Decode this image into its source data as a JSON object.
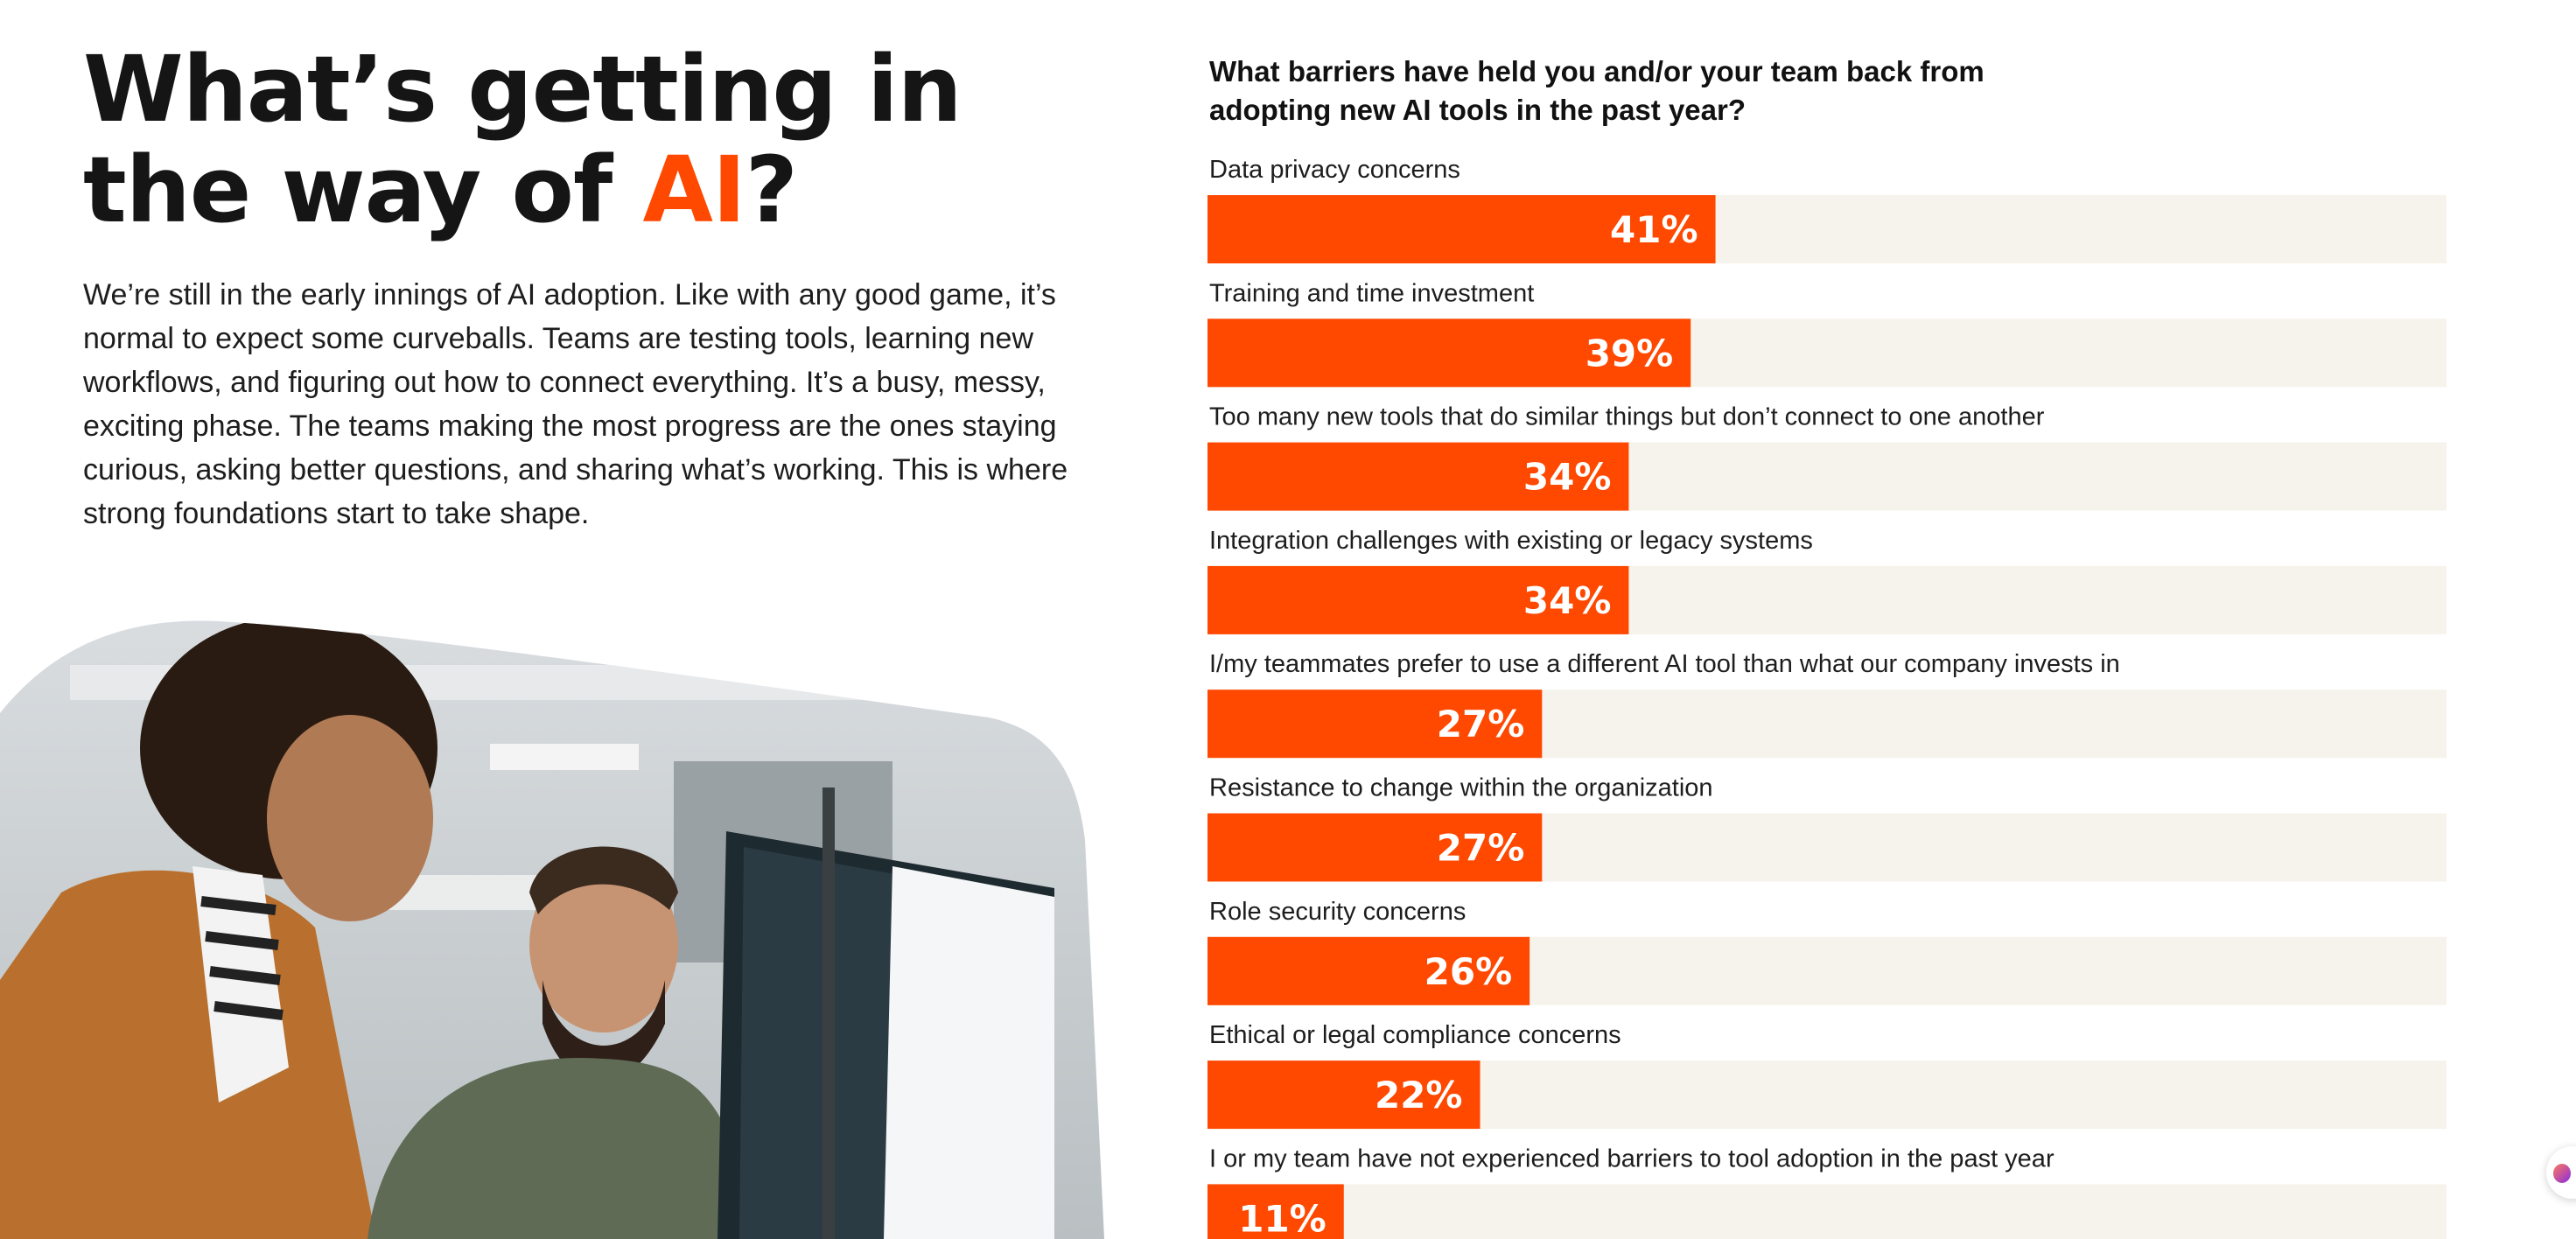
{
  "headline": {
    "line1": "What’s getting in",
    "line2_prefix": "the way of ",
    "line2_accent": "AI",
    "line2_suffix": "?"
  },
  "intro": "We’re still in the early innings of AI adoption. Like with any good game, it’s normal to expect some curveballs. Teams are testing tools, learning new workflows, and figuring out how to connect everything. It’s a busy, messy, exciting phase. The teams making the most progress are the ones staying curious, asking better questions, and sharing what’s working. This is where strong foundations start to take shape.",
  "colors": {
    "accent": "#ff4800",
    "track": "#f6f3ec",
    "photo_blob": "#f5f2fd"
  },
  "chart_data": {
    "type": "bar",
    "orientation": "horizontal",
    "title": "What barriers have held you and/or your team back from adopting new AI tools in the past year?",
    "xlabel": "",
    "ylabel": "",
    "xlim": [
      0,
      100
    ],
    "categories": [
      "Data privacy concerns",
      "Training and time investment",
      "Too many new tools that do similar things but don’t connect to one another",
      "Integration challenges with existing or legacy systems",
      "I/my teammates prefer to use a different AI tool than what our company invests in",
      "Resistance to change within the organization",
      "Role security concerns",
      "Ethical or legal compliance concerns",
      "I or my team have not experienced barriers to tool adoption in the past year"
    ],
    "values": [
      41,
      39,
      34,
      34,
      27,
      27,
      26,
      22,
      11
    ],
    "value_labels": [
      "41%",
      "39%",
      "34%",
      "34%",
      "27%",
      "27%",
      "26%",
      "22%",
      "11%"
    ]
  }
}
